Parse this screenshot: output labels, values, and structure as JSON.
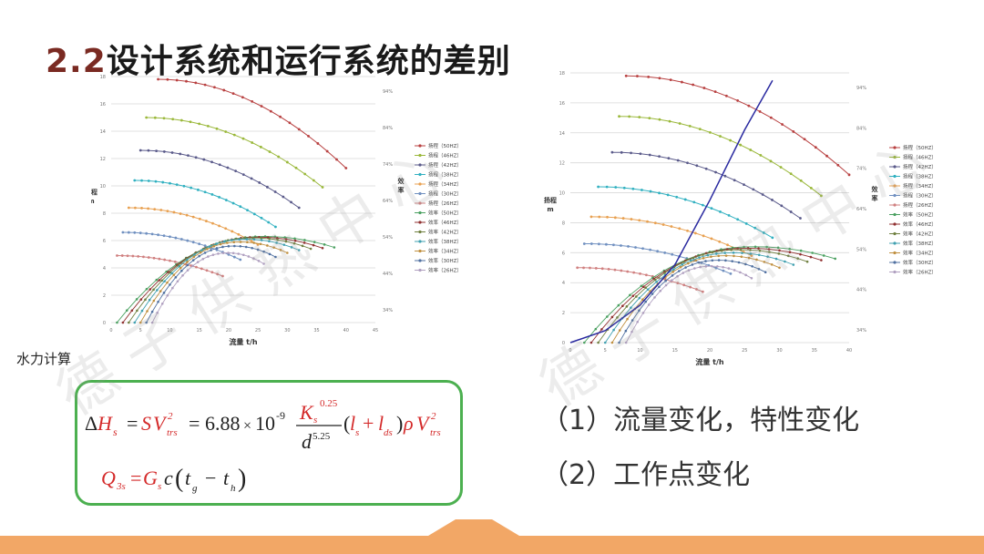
{
  "slide": {
    "title_num": "2.2",
    "title_text": "设计系统和运行系统的差别",
    "side_note": "水力计算",
    "notes": [
      "（1）流量变化，特性变化",
      "（2）工作点变化"
    ],
    "watermark": "德 子 供 热 中 心",
    "colors": {
      "green_border": "#4cb050",
      "formula_red": "#d42a2a",
      "band": "#f2a766"
    }
  },
  "formula": {
    "line1": {
      "delta": "Δ",
      "H": "H",
      "sub_s": "s",
      "eq1": "=",
      "S": "S",
      "V": "V",
      "sub_trs": "trs",
      "sq": "2",
      "eq2": "=",
      "coef": "6.88",
      "times": "×",
      "ten": "10",
      "exp": "-9",
      "K": "K",
      "exp_025": "0.25",
      "d": "d",
      "exp_525": "5.25",
      "paren_open": "(",
      "l": "l",
      "plus": "+",
      "l2": "l",
      "sub_ds": "ds",
      "paren_close": ")",
      "rho": "ρ"
    },
    "line2": {
      "Q": "Q",
      "sub_3s": "3s",
      "eq": "=",
      "G": "G",
      "sub_s": "s",
      "c": "c",
      "lpar": "(",
      "t1": "t",
      "sub_g": "g",
      "minus": "−",
      "t2": "t",
      "sub_h": "h",
      "rpar": ")"
    }
  },
  "chart_data": [
    {
      "type": "line",
      "xlabel": "流量 t/h",
      "ylabel_left": "扬程 m",
      "ylabel_right": "效率",
      "xlim": [
        0,
        45
      ],
      "ylim": [
        0,
        18
      ],
      "x_ticks": [
        "0",
        "5",
        "10",
        "15",
        "20",
        "25",
        "30",
        "35",
        "40",
        "45"
      ],
      "y_ticks": [
        "0",
        "2",
        "4",
        "6",
        "8",
        "10",
        "12",
        "14",
        "16",
        "18"
      ],
      "y2_ticks": [
        "34%",
        "44%",
        "54%",
        "64%",
        "74%",
        "84%",
        "94%"
      ],
      "legend": [
        "扬程（50HZ）",
        "扬程（46HZ）",
        "扬程（42HZ）",
        "扬程（38HZ）",
        "扬程（34HZ）",
        "扬程（30HZ）",
        "扬程（26HZ）",
        "效率（50HZ）",
        "效率（46HZ）",
        "效率（42HZ）",
        "效率（38HZ）",
        "效率（34HZ）",
        "效率（30HZ）",
        "效率（26HZ）"
      ],
      "series_colors": [
        "#b84040",
        "#9ab83a",
        "#5a5a8a",
        "#30b0c0",
        "#e8a050",
        "#7090c0",
        "#d08080",
        "#4aa060",
        "#903030",
        "#708040",
        "#40a0b0",
        "#c09040",
        "#5070a0",
        "#b0a0c0"
      ],
      "head_series": [
        {
          "x": [
            8,
            40
          ],
          "y": [
            17.8,
            11.3
          ]
        },
        {
          "x": [
            6,
            36
          ],
          "y": [
            15.0,
            9.9
          ]
        },
        {
          "x": [
            5,
            32
          ],
          "y": [
            12.6,
            8.4
          ]
        },
        {
          "x": [
            4,
            28
          ],
          "y": [
            10.4,
            7.0
          ]
        },
        {
          "x": [
            3,
            25
          ],
          "y": [
            8.4,
            5.7
          ]
        },
        {
          "x": [
            2,
            22
          ],
          "y": [
            6.6,
            4.6
          ]
        },
        {
          "x": [
            1,
            19
          ],
          "y": [
            4.9,
            3.4
          ]
        }
      ],
      "efficiency_series": [
        {
          "x": [
            1,
            38
          ],
          "peak": 6.3
        },
        {
          "x": [
            2,
            36
          ],
          "peak": 6.25
        },
        {
          "x": [
            3,
            34
          ],
          "peak": 6.2
        },
        {
          "x": [
            4,
            32
          ],
          "peak": 6.1
        },
        {
          "x": [
            5,
            30
          ],
          "peak": 5.9
        },
        {
          "x": [
            6,
            28
          ],
          "peak": 5.6
        },
        {
          "x": [
            7,
            26
          ],
          "peak": 5.1
        }
      ],
      "system_curve": null
    },
    {
      "type": "line",
      "xlabel": "流量 t/h",
      "ylabel_left": "扬程 m",
      "ylabel_right": "效率",
      "xlim": [
        0,
        40
      ],
      "ylim": [
        0,
        18
      ],
      "x_ticks": [
        "0",
        "5",
        "10",
        "15",
        "20",
        "25",
        "30",
        "35",
        "40"
      ],
      "y_ticks": [
        "0",
        "2",
        "4",
        "6",
        "8",
        "10",
        "12",
        "14",
        "16",
        "18"
      ],
      "y2_ticks": [
        "34%",
        "44%",
        "54%",
        "64%",
        "74%",
        "84%",
        "94%"
      ],
      "legend": [
        "扬程（50HZ）",
        "扬程（46HZ）",
        "扬程（42HZ）",
        "扬程（38HZ）",
        "扬程（34HZ）",
        "扬程（30HZ）",
        "扬程（26HZ）",
        "效率（50HZ）",
        "效率（46HZ）",
        "效率（42HZ）",
        "效率（38HZ）",
        "效率（34HZ）",
        "效率（30HZ）",
        "效率（26HZ）"
      ],
      "series_colors": [
        "#b84040",
        "#9ab83a",
        "#5a5a8a",
        "#30b0c0",
        "#e8a050",
        "#7090c0",
        "#d08080",
        "#4aa060",
        "#903030",
        "#708040",
        "#40a0b0",
        "#c09040",
        "#5070a0",
        "#b0a0c0"
      ],
      "head_series": [
        {
          "x": [
            8,
            40
          ],
          "y": [
            17.8,
            11.2
          ]
        },
        {
          "x": [
            7,
            36
          ],
          "y": [
            15.1,
            9.8
          ]
        },
        {
          "x": [
            6,
            33
          ],
          "y": [
            12.7,
            8.3
          ]
        },
        {
          "x": [
            4,
            29
          ],
          "y": [
            10.4,
            7.0
          ]
        },
        {
          "x": [
            3,
            26
          ],
          "y": [
            8.4,
            5.8
          ]
        },
        {
          "x": [
            2,
            23
          ],
          "y": [
            6.6,
            4.6
          ]
        },
        {
          "x": [
            1,
            19
          ],
          "y": [
            5.0,
            3.4
          ]
        }
      ],
      "efficiency_series": [
        {
          "x": [
            2,
            38
          ],
          "peak": 6.4
        },
        {
          "x": [
            3,
            36
          ],
          "peak": 6.3
        },
        {
          "x": [
            4,
            34
          ],
          "peak": 6.2
        },
        {
          "x": [
            5,
            32
          ],
          "peak": 6.0
        },
        {
          "x": [
            6,
            30
          ],
          "peak": 5.8
        },
        {
          "x": [
            7,
            28
          ],
          "peak": 5.5
        },
        {
          "x": [
            8,
            26
          ],
          "peak": 5.1
        }
      ],
      "system_curve": {
        "x": [
          0,
          5,
          10,
          15,
          20,
          25,
          29
        ],
        "y": [
          0,
          0.8,
          2.5,
          5.2,
          9.5,
          14.2,
          17.5
        ]
      }
    }
  ]
}
